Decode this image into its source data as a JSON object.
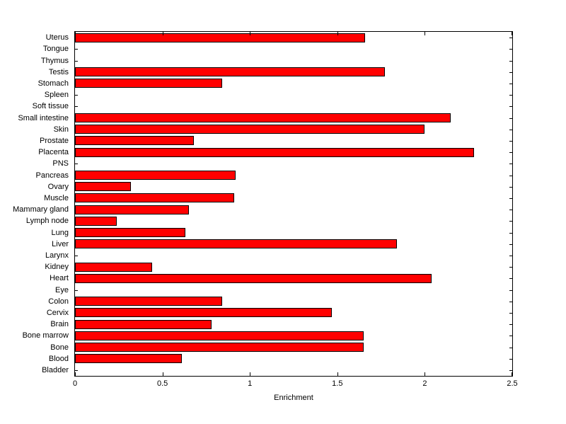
{
  "chart_data": {
    "type": "bar",
    "orientation": "horizontal",
    "title": "",
    "xlabel": "Enrichment",
    "ylabel": "",
    "xlim": [
      0,
      2.5
    ],
    "xticks": [
      0,
      0.5,
      1,
      1.5,
      2,
      2.5
    ],
    "xtick_labels": [
      "0",
      "0.5",
      "1",
      "1.5",
      "2",
      "2.5"
    ],
    "grid": false,
    "bar_color": "#ff0000",
    "bar_edge_color": "#000000",
    "background_color": "#ffffff",
    "categories": [
      "Uterus",
      "Tongue",
      "Thymus",
      "Testis",
      "Stomach",
      "Spleen",
      "Soft tissue",
      "Small intestine",
      "Skin",
      "Prostate",
      "Placenta",
      "PNS",
      "Pancreas",
      "Ovary",
      "Muscle",
      "Mammary gland",
      "Lymph node",
      "Lung",
      "Liver",
      "Larynx",
      "Kidney",
      "Heart",
      "Eye",
      "Colon",
      "Cervix",
      "Brain",
      "Bone marrow",
      "Bone",
      "Blood",
      "Bladder"
    ],
    "values": [
      1.66,
      0,
      0,
      1.77,
      0.84,
      0,
      0,
      2.15,
      2.0,
      0.68,
      2.28,
      0,
      0.92,
      0.32,
      0.91,
      0.65,
      0.24,
      0.63,
      1.84,
      0,
      0.44,
      2.04,
      0,
      0.84,
      1.47,
      0.78,
      1.65,
      1.65,
      0.61,
      0
    ]
  }
}
